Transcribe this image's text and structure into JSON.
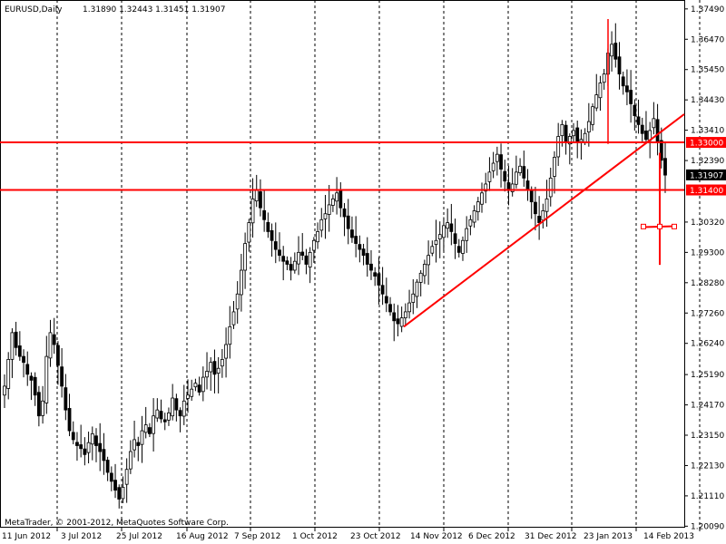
{
  "header": {
    "symbol": "EURUSD,Daily",
    "ohlc": "1.31890 1.32443 1.31451 1.31907"
  },
  "watermark": "MetaTrader, © 2001-2012, MetaQuotes Software Corp.",
  "colors": {
    "background": "#ffffff",
    "grid": "#000000",
    "candle": "#000000",
    "drawing": "#ff0000",
    "price_label_red_bg": "#ff0000",
    "price_label_current_bg": "#000000"
  },
  "chart_data": {
    "type": "candlestick",
    "instrument": "EURUSD",
    "timeframe": "Daily",
    "ylim": [
      1.2007,
      1.3779
    ],
    "y_ticks": [
      "1.37490",
      "1.36470",
      "1.35450",
      "1.34430",
      "1.33410",
      "1.32390",
      "1.30320",
      "1.29300",
      "1.28280",
      "1.27260",
      "1.26240",
      "1.25190",
      "1.24170",
      "1.23150",
      "1.22130",
      "1.21110",
      "1.20090"
    ],
    "x_ticks": [
      "11 Jun 2012",
      "3 Jul 2012",
      "25 Jul 2012",
      "16 Aug 2012",
      "7 Sep 2012",
      "1 Oct 2012",
      "23 Oct 2012",
      "14 Nov 2012",
      "6 Dec 2012",
      "31 Dec 2012",
      "23 Jan 2013",
      "14 Feb 2013"
    ],
    "price_labels": [
      {
        "value": "1.33000",
        "style": "red"
      },
      {
        "value": "1.31907",
        "style": "current"
      },
      {
        "value": "1.31400",
        "style": "red"
      }
    ],
    "horizontal_lines": [
      1.33,
      1.314
    ],
    "trendline": {
      "from": [
        "14 Nov 2012",
        1.268
      ],
      "to": [
        "mid-Feb 2013",
        1.336
      ]
    },
    "current_price": 1.31907,
    "closes": [
      1.248,
      1.257,
      1.266,
      1.261,
      1.258,
      1.256,
      1.252,
      1.25,
      1.245,
      1.238,
      1.243,
      1.258,
      1.266,
      1.262,
      1.255,
      1.248,
      1.24,
      1.233,
      1.23,
      1.228,
      1.227,
      1.225,
      1.229,
      1.232,
      1.228,
      1.226,
      1.223,
      1.219,
      1.216,
      1.213,
      1.21,
      1.214,
      1.22,
      1.226,
      1.23,
      1.228,
      1.233,
      1.235,
      1.232,
      1.238,
      1.24,
      1.237,
      1.236,
      1.239,
      1.244,
      1.24,
      1.238,
      1.243,
      1.245,
      1.247,
      1.249,
      1.246,
      1.251,
      1.253,
      1.256,
      1.252,
      1.254,
      1.257,
      1.262,
      1.268,
      1.273,
      1.279,
      1.287,
      1.296,
      1.303,
      1.311,
      1.314,
      1.308,
      1.304,
      1.3,
      1.297,
      1.294,
      1.292,
      1.29,
      1.289,
      1.287,
      1.29,
      1.293,
      1.292,
      1.289,
      1.293,
      1.297,
      1.3,
      1.304,
      1.306,
      1.309,
      1.311,
      1.313,
      1.308,
      1.305,
      1.301,
      1.298,
      1.296,
      1.294,
      1.292,
      1.289,
      1.287,
      1.285,
      1.282,
      1.279,
      1.276,
      1.273,
      1.27,
      1.269,
      1.271,
      1.273,
      1.276,
      1.279,
      1.283,
      1.286,
      1.289,
      1.292,
      1.295,
      1.297,
      1.299,
      1.302,
      1.303,
      1.3,
      1.296,
      1.293,
      1.297,
      1.301,
      1.304,
      1.307,
      1.31,
      1.313,
      1.316,
      1.32,
      1.323,
      1.326,
      1.321,
      1.317,
      1.314,
      1.316,
      1.32,
      1.322,
      1.318,
      1.314,
      1.31,
      1.306,
      1.303,
      1.307,
      1.311,
      1.318,
      1.325,
      1.332,
      1.336,
      1.33,
      1.332,
      1.334,
      1.33,
      1.331,
      1.333,
      1.337,
      1.342,
      1.346,
      1.35,
      1.353,
      1.36,
      1.363,
      1.358,
      1.353,
      1.349,
      1.347,
      1.343,
      1.339,
      1.336,
      1.333,
      1.331,
      1.334,
      1.338,
      1.33,
      1.324,
      1.319
    ]
  }
}
